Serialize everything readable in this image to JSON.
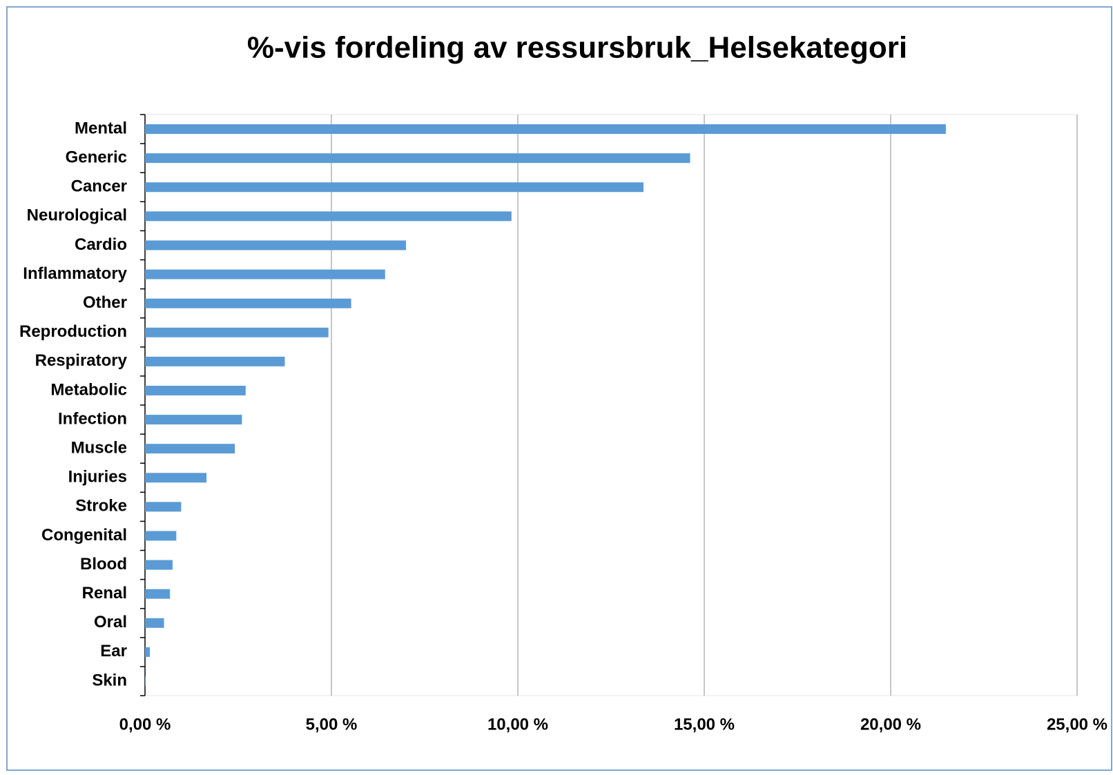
{
  "chart_data": {
    "type": "bar",
    "orientation": "horizontal",
    "title": "%-vis fordeling av ressursbruk_Helsekategori",
    "categories": [
      "Mental",
      "Generic",
      "Cancer",
      "Neurological",
      "Cardio",
      "Inflammatory",
      "Other",
      "Reproduction",
      "Respiratory",
      "Metabolic",
      "Infection",
      "Muscle",
      "Injuries",
      "Stroke",
      "Congenital",
      "Blood",
      "Renal",
      "Oral",
      "Ear",
      "Skin"
    ],
    "values": [
      21.48,
      14.62,
      13.37,
      9.83,
      7.0,
      6.44,
      5.53,
      4.92,
      3.75,
      2.7,
      2.6,
      2.41,
      1.65,
      0.97,
      0.84,
      0.74,
      0.67,
      0.51,
      0.13,
      0.01
    ],
    "color": "#5b9bd5",
    "xlim": [
      0,
      25
    ],
    "xticks": [
      {
        "value": 0,
        "label": "0,00 %"
      },
      {
        "value": 5,
        "label": "5,00 %"
      },
      {
        "value": 10,
        "label": "10,00 %"
      },
      {
        "value": 15,
        "label": "15,00 %"
      },
      {
        "value": 20,
        "label": "20,00 %"
      },
      {
        "value": 25,
        "label": "25,00 %"
      }
    ],
    "grid": true
  }
}
